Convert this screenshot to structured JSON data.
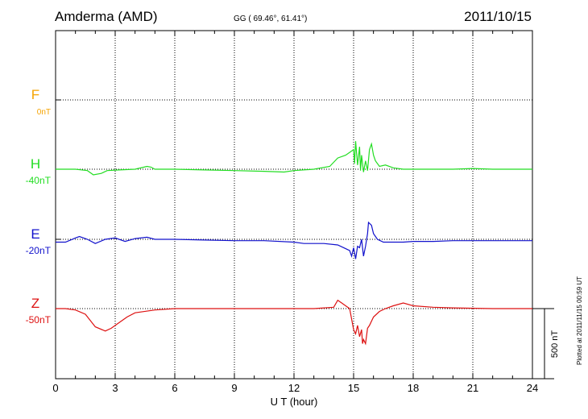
{
  "header": {
    "station": "Amderma (AMD)",
    "coords": "GG ( 69.46°,  61.41°)",
    "date": "2011/10/15"
  },
  "plotted_note": "Plotted at 2011/11/15 00:59 UT",
  "scale_label": "500 nT",
  "chart_data": {
    "type": "line",
    "title": "Amderma (AMD)",
    "xlabel": "U T (hour)",
    "ylabel": "",
    "xlim": [
      0,
      24
    ],
    "x_ticks": [
      0,
      3,
      6,
      9,
      12,
      15,
      18,
      21,
      24
    ],
    "x_tick_labels": [
      "0",
      "3",
      "6",
      "9",
      "12",
      "15",
      "18",
      "21",
      "24"
    ],
    "grid": true,
    "scale_bar_nT": 500,
    "series": [
      {
        "name": "F",
        "baseline_label": "0nT",
        "color": "#f5a300",
        "x": [],
        "values": []
      },
      {
        "name": "H",
        "baseline_label": "-40nT",
        "color": "#22dd22",
        "x": [
          0,
          0.5,
          1.0,
          1.6,
          1.9,
          2.3,
          2.6,
          3.2,
          4.0,
          4.6,
          4.8,
          5.0,
          6.0,
          7.5,
          9.0,
          10.5,
          11.5,
          12.0,
          13.0,
          13.8,
          14.2,
          14.6,
          14.8,
          15.0,
          15.05,
          15.1,
          15.2,
          15.3,
          15.35,
          15.4,
          15.5,
          15.6,
          15.7,
          15.8,
          15.9,
          16.0,
          16.1,
          16.3,
          16.6,
          17.0,
          17.5,
          18.0,
          19.0,
          20.0,
          21.0,
          22.0,
          23.0,
          24.0
        ],
        "values": [
          0,
          0,
          0,
          -10,
          -40,
          -30,
          -10,
          -5,
          0,
          20,
          15,
          0,
          0,
          -5,
          -10,
          -15,
          -20,
          -10,
          0,
          20,
          80,
          100,
          120,
          140,
          40,
          200,
          30,
          160,
          -10,
          100,
          -20,
          60,
          -10,
          140,
          180,
          100,
          60,
          20,
          30,
          10,
          0,
          0,
          0,
          0,
          5,
          0,
          0,
          0
        ]
      },
      {
        "name": "E",
        "baseline_label": "-20nT",
        "color": "#1111cc",
        "x": [
          0,
          0.5,
          1.0,
          1.2,
          1.6,
          2.0,
          2.5,
          3.0,
          3.5,
          4.0,
          4.6,
          5.0,
          6.0,
          7.5,
          9.0,
          10.5,
          12.0,
          12.5,
          13.5,
          14.2,
          14.5,
          14.8,
          14.9,
          15.0,
          15.1,
          15.2,
          15.3,
          15.4,
          15.5,
          15.6,
          15.7,
          15.75,
          15.9,
          16.0,
          16.2,
          16.5,
          17.0,
          17.5,
          18.0,
          19.0,
          20.0,
          21.0,
          22.0,
          23.0,
          24.0
        ],
        "values": [
          -20,
          -20,
          10,
          20,
          0,
          -30,
          0,
          10,
          -15,
          5,
          15,
          0,
          0,
          -5,
          -10,
          -10,
          -20,
          -30,
          -30,
          -40,
          -60,
          -80,
          -120,
          -60,
          -140,
          -50,
          -60,
          0,
          -120,
          -50,
          40,
          120,
          100,
          40,
          0,
          -20,
          -20,
          -20,
          -15,
          -15,
          -10,
          -10,
          -10,
          -10,
          -10
        ]
      },
      {
        "name": "Z",
        "baseline_label": "-50nT",
        "color": "#dd1111",
        "x": [
          0,
          0.5,
          1.0,
          1.5,
          2.0,
          2.5,
          2.8,
          3.2,
          3.6,
          4.0,
          5.0,
          6.0,
          8.0,
          10.0,
          12.0,
          13.0,
          14.0,
          14.2,
          14.4,
          14.6,
          14.8,
          15.0,
          15.1,
          15.2,
          15.3,
          15.4,
          15.45,
          15.5,
          15.6,
          15.7,
          15.8,
          16.0,
          16.3,
          16.6,
          17.0,
          17.5,
          18.0,
          19.0,
          20.0,
          22.0,
          24.0
        ],
        "values": [
          0,
          0,
          -10,
          -40,
          -130,
          -160,
          -140,
          -100,
          -60,
          -30,
          -10,
          0,
          0,
          0,
          0,
          0,
          10,
          60,
          40,
          20,
          0,
          -150,
          -180,
          -120,
          -200,
          -150,
          -250,
          -220,
          -250,
          -140,
          -120,
          -60,
          -20,
          0,
          20,
          40,
          20,
          10,
          5,
          0,
          0
        ]
      }
    ]
  }
}
